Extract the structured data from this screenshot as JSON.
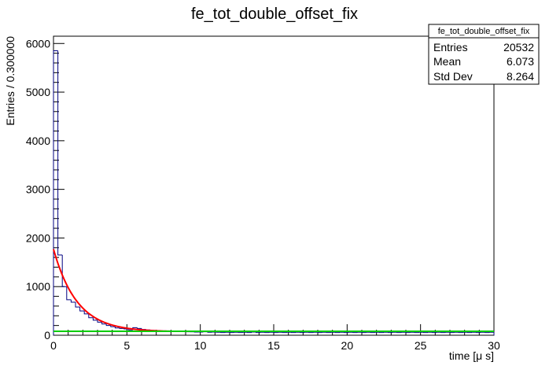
{
  "chart_data": {
    "type": "histogram",
    "title": "fe_tot_double_offset_fix",
    "xlabel": "time [μ s]",
    "ylabel": "Entries / 0.300000",
    "xlim": [
      0,
      30
    ],
    "ylim": [
      0,
      6150
    ],
    "bin_width": 0.3,
    "x_ticks": [
      0,
      5,
      10,
      15,
      20,
      25,
      30
    ],
    "y_ticks": [
      0,
      1000,
      2000,
      3000,
      4000,
      5000,
      6000
    ],
    "grid": false,
    "histogram_color": "#000080",
    "values": [
      5850,
      1650,
      1000,
      730,
      680,
      580,
      500,
      440,
      360,
      310,
      270,
      230,
      200,
      175,
      150,
      140,
      130,
      110,
      155,
      140,
      120,
      110,
      100,
      95,
      90,
      85,
      85,
      80,
      75,
      75,
      70,
      70,
      65,
      65,
      70,
      60,
      65,
      60,
      55,
      60,
      55,
      60,
      55,
      60,
      55,
      65,
      55,
      60,
      55,
      60,
      55,
      60,
      55,
      60,
      55,
      60,
      55,
      60,
      55,
      60,
      55,
      60,
      55,
      60,
      55,
      60,
      55,
      60,
      55,
      60,
      55,
      60,
      55,
      60,
      55,
      60,
      55,
      60,
      55,
      60,
      55,
      60,
      55,
      60,
      55,
      60,
      55,
      60,
      55,
      60,
      55,
      60,
      55,
      60,
      55,
      60,
      55,
      60,
      55,
      60
    ],
    "fits": [
      {
        "kind": "exponential",
        "color": "#ff0000",
        "x_range": [
          0.0,
          8.0
        ],
        "amplitude": 1700,
        "decay_us": 1.6,
        "offset": 70
      },
      {
        "kind": "constant",
        "color": "#00cc00",
        "x_range": [
          0.0,
          30.0
        ],
        "value": 80
      }
    ]
  },
  "stats": {
    "title": "fe_tot_double_offset_fix",
    "rows": [
      {
        "label": "Entries",
        "value": "20532"
      },
      {
        "label": "Mean",
        "value": "6.073"
      },
      {
        "label": "Std Dev",
        "value": "8.264"
      }
    ]
  }
}
